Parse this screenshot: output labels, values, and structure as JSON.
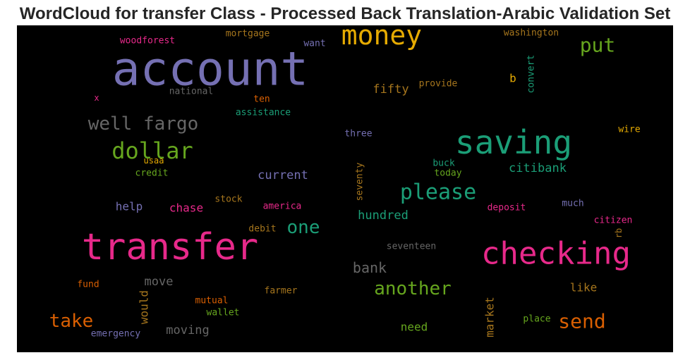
{
  "chart_data": {
    "type": "wordcloud",
    "title": "WordCloud for transfer Class - Processed Back Translation-Arabic Validation Set",
    "background": "#000000",
    "words": [
      {
        "text": "account",
        "color": "#7570b3"
      },
      {
        "text": "transfer",
        "color": "#e7298a"
      },
      {
        "text": "checking",
        "color": "#e7298a"
      },
      {
        "text": "saving",
        "color": "#1b9e77"
      },
      {
        "text": "money",
        "color": "#e6ab02"
      },
      {
        "text": "dollar",
        "color": "#66a61e"
      },
      {
        "text": "please",
        "color": "#1b9e77"
      },
      {
        "text": "well fargo",
        "color": "#666666"
      },
      {
        "text": "another",
        "color": "#66a61e"
      },
      {
        "text": "put",
        "color": "#66a61e"
      },
      {
        "text": "send",
        "color": "#d95f02"
      },
      {
        "text": "take",
        "color": "#d95f02"
      },
      {
        "text": "one",
        "color": "#1b9e77"
      },
      {
        "text": "bank",
        "color": "#666666"
      },
      {
        "text": "current",
        "color": "#7570b3"
      },
      {
        "text": "hundred",
        "color": "#1b9e77"
      },
      {
        "text": "citibank",
        "color": "#1b9e77"
      },
      {
        "text": "fifty",
        "color": "#a6761d"
      },
      {
        "text": "move",
        "color": "#666666"
      },
      {
        "text": "moving",
        "color": "#666666"
      },
      {
        "text": "need",
        "color": "#66a61e"
      },
      {
        "text": "like",
        "color": "#a6761d"
      },
      {
        "text": "help",
        "color": "#7570b3"
      },
      {
        "text": "chase",
        "color": "#e7298a"
      },
      {
        "text": "would",
        "color": "#a6761d"
      },
      {
        "text": "market",
        "color": "#a6761d"
      },
      {
        "text": "b",
        "color": "#e6ab02"
      },
      {
        "text": "convert",
        "color": "#1b9e77"
      },
      {
        "text": "washington",
        "color": "#a6761d"
      },
      {
        "text": "mortgage",
        "color": "#a6761d"
      },
      {
        "text": "woodforest",
        "color": "#e7298a"
      },
      {
        "text": "want",
        "color": "#7570b3"
      },
      {
        "text": "provide",
        "color": "#a6761d"
      },
      {
        "text": "national",
        "color": "#666666"
      },
      {
        "text": "ten",
        "color": "#d95f02"
      },
      {
        "text": "x",
        "color": "#e7298a"
      },
      {
        "text": "assistance",
        "color": "#1b9e77"
      },
      {
        "text": "three",
        "color": "#7570b3"
      },
      {
        "text": "wire",
        "color": "#e6ab02"
      },
      {
        "text": "usaa",
        "color": "#e6ab02"
      },
      {
        "text": "credit",
        "color": "#66a61e"
      },
      {
        "text": "buck",
        "color": "#1b9e77"
      },
      {
        "text": "today",
        "color": "#66a61e"
      },
      {
        "text": "seventy",
        "color": "#a6761d"
      },
      {
        "text": "stock",
        "color": "#a6761d"
      },
      {
        "text": "america",
        "color": "#e7298a"
      },
      {
        "text": "deposit",
        "color": "#e7298a"
      },
      {
        "text": "much",
        "color": "#7570b3"
      },
      {
        "text": "citizen",
        "color": "#e7298a"
      },
      {
        "text": "rb",
        "color": "#a6761d"
      },
      {
        "text": "debit",
        "color": "#a6761d"
      },
      {
        "text": "seventeen",
        "color": "#666666"
      },
      {
        "text": "fund",
        "color": "#d95f02"
      },
      {
        "text": "mutual",
        "color": "#d95f02"
      },
      {
        "text": "farmer",
        "color": "#a6761d"
      },
      {
        "text": "wallet",
        "color": "#66a61e"
      },
      {
        "text": "place",
        "color": "#66a61e"
      },
      {
        "text": "emergency",
        "color": "#7570b3"
      }
    ]
  }
}
